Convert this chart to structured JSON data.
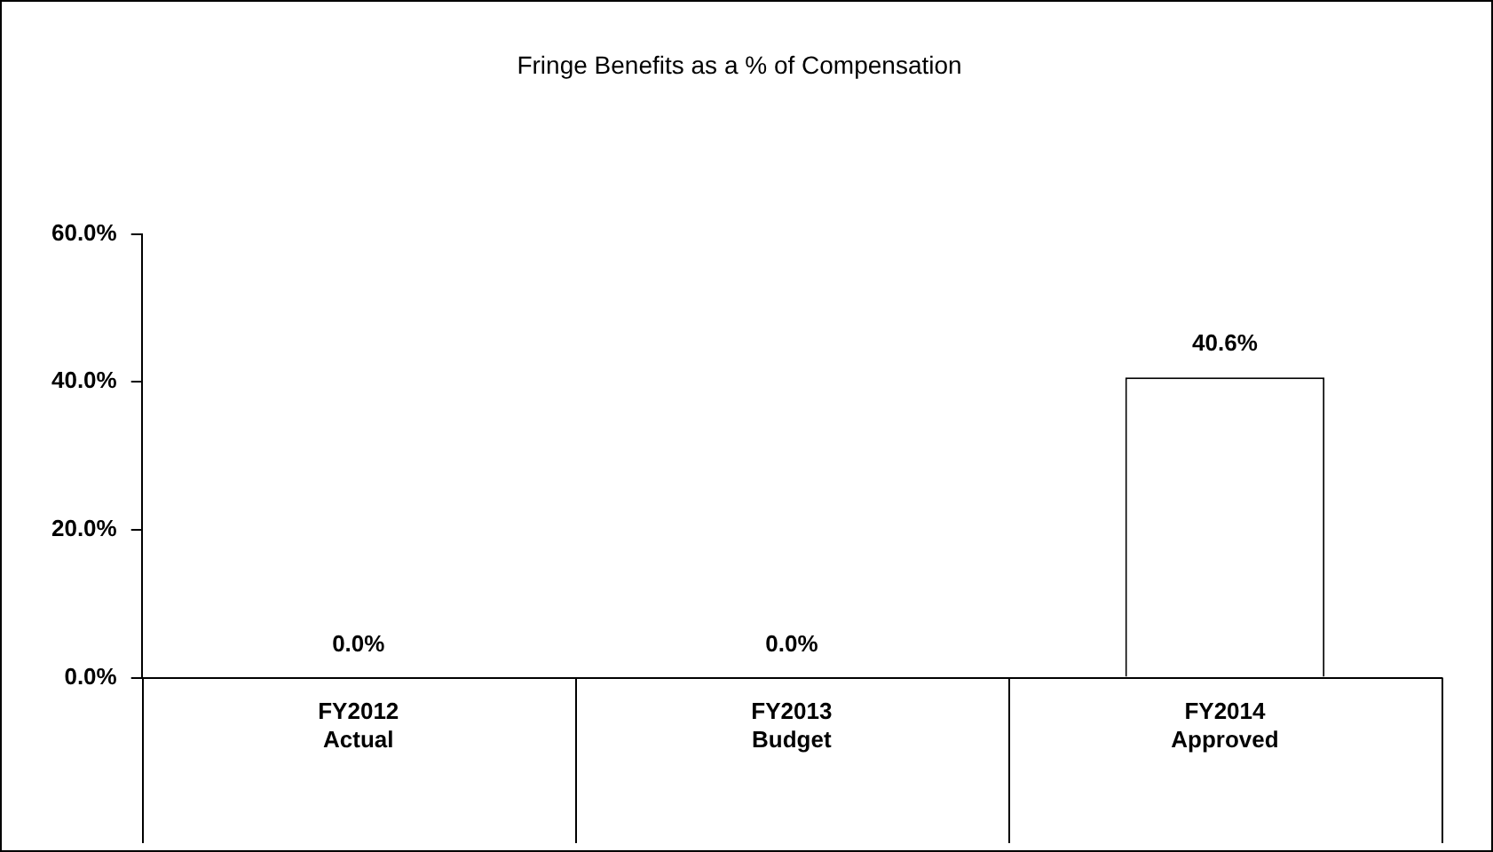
{
  "chart_data": {
    "type": "bar",
    "title": "Fringe Benefits as a % of Compensation",
    "categories": [
      "FY2012\nActual",
      "FY2013\nBudget",
      "FY2014\nApproved"
    ],
    "values": [
      0,
      0,
      40.6
    ],
    "color": "#ffffff",
    "value_labels": [
      "0.0%",
      "0.0%",
      "40.6%"
    ],
    "ylim": [
      0,
      60
    ],
    "yticks": [
      {
        "value": 0,
        "label": "0.0%"
      },
      {
        "value": 20,
        "label": "20.0%"
      },
      {
        "value": 40,
        "label": "40.0%"
      },
      {
        "value": 60,
        "label": "60.0%"
      }
    ],
    "grid": false,
    "legend": false
  }
}
